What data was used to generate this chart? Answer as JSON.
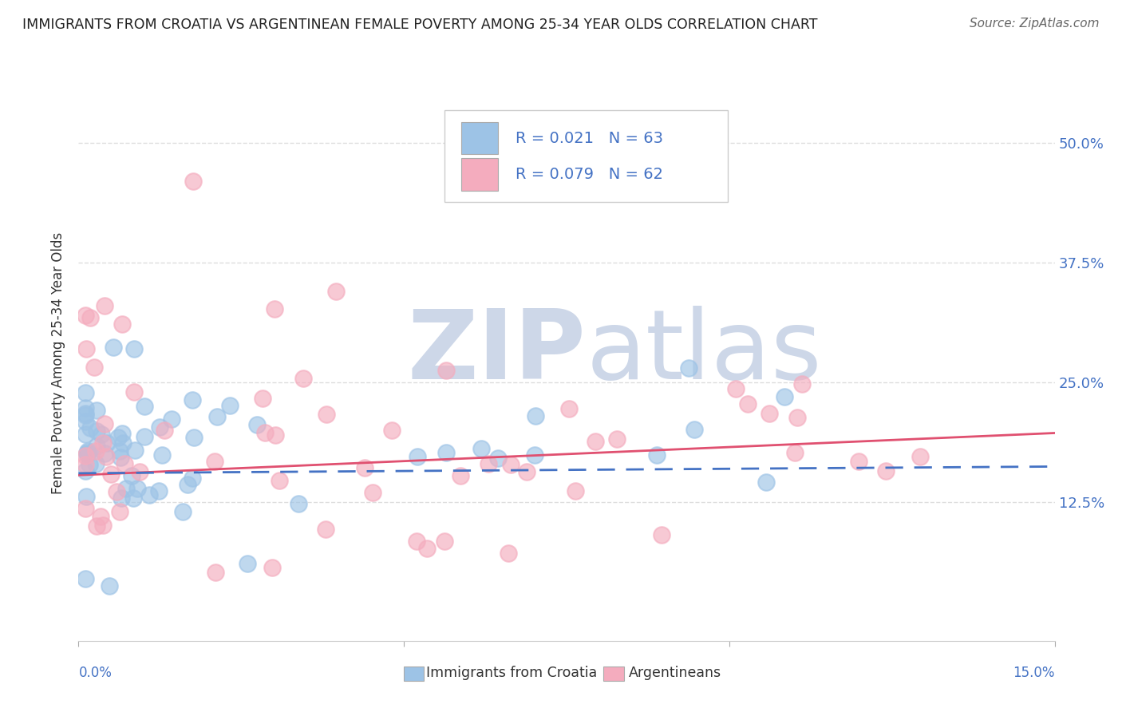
{
  "title": "IMMIGRANTS FROM CROATIA VS ARGENTINEAN FEMALE POVERTY AMONG 25-34 YEAR OLDS CORRELATION CHART",
  "source": "Source: ZipAtlas.com",
  "xlabel_croatia": "Immigrants from Croatia",
  "xlabel_argentina": "Argentineans",
  "ylabel": "Female Poverty Among 25-34 Year Olds",
  "xlim": [
    0.0,
    0.15
  ],
  "ylim": [
    -0.02,
    0.56
  ],
  "yticks": [
    0.125,
    0.25,
    0.375,
    0.5
  ],
  "yticklabels_right": [
    "12.5%",
    "25.0%",
    "37.5%",
    "50.0%"
  ],
  "R_croatia": 0.021,
  "N_croatia": 63,
  "R_argentina": 0.079,
  "N_argentina": 62,
  "color_croatia": "#9DC3E6",
  "color_argentina": "#F4ACBE",
  "color_text_blue": "#4472C4",
  "trendline_croatia_color": "#4472C4",
  "trendline_argentina_color": "#E05070",
  "background_color": "#ffffff",
  "watermark_zip": "ZIP",
  "watermark_atlas": "atlas",
  "grid_color": "#DDDDDD",
  "legend_bg": "#ffffff",
  "legend_border": "#CCCCCC",
  "tick_color": "#777777",
  "title_color": "#222222",
  "source_color": "#666666"
}
